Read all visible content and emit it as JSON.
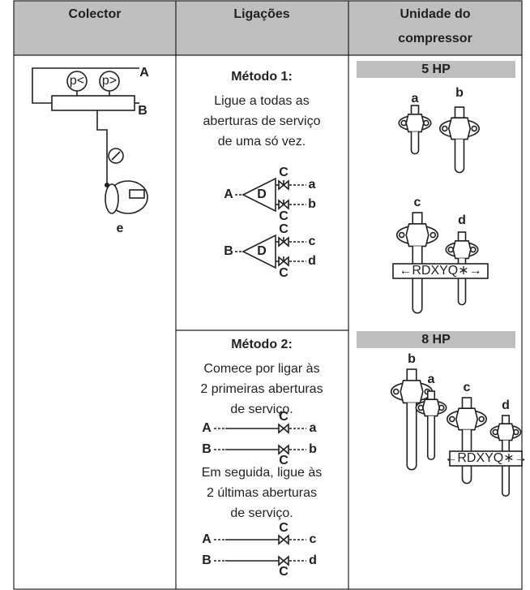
{
  "table": {
    "headers": [
      [
        "Colector"
      ],
      [
        "Ligações"
      ],
      [
        "Unidade do",
        "compressor"
      ]
    ]
  },
  "collector": {
    "labels": [
      "p<",
      "p>",
      "A",
      "B",
      "e"
    ]
  },
  "methods": [
    {
      "title": "Método 1:",
      "text": [
        "Ligue a todas as",
        "aberturas de serviço",
        "de uma só vez."
      ],
      "diagrams": [
        {
          "source": "A",
          "junction": "D",
          "valves": [
            "C",
            "C"
          ],
          "ports": [
            "a",
            "b"
          ]
        },
        {
          "source": "B",
          "junction": "D",
          "valves": [
            "C",
            "C"
          ],
          "ports": [
            "c",
            "d"
          ]
        }
      ]
    },
    {
      "title": "Método 2:",
      "steps": [
        {
          "text": [
            "Comece por ligar às",
            "2 primeiras aberturas",
            "de serviço."
          ],
          "sources": [
            "A",
            "B"
          ],
          "valves": [
            "C",
            "C"
          ],
          "ports": [
            "a",
            "b"
          ]
        },
        {
          "text": [
            "Em seguida, ligue às",
            "2 últimas aberturas",
            "de serviço."
          ],
          "sources": [
            "A",
            "B"
          ],
          "valves": [
            "C",
            "C"
          ],
          "ports": [
            "c",
            "d"
          ]
        }
      ]
    }
  ],
  "compressor": [
    {
      "label": "5 HP",
      "ports": [
        "a",
        "b",
        "c",
        "d"
      ],
      "tag": "←RDXYQ∗→"
    },
    {
      "label": "8 HP",
      "ports": [
        "b",
        "a",
        "c",
        "d"
      ],
      "tag": "←RDXYQ∗→"
    }
  ]
}
